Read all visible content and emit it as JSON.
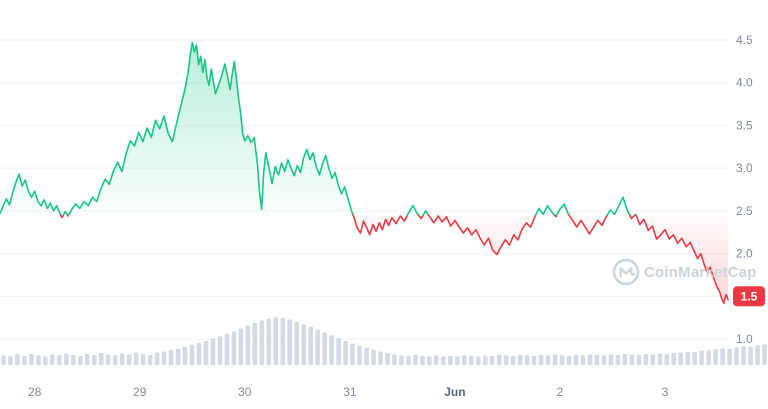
{
  "watermark": {
    "text": "CoinMarketCap",
    "icon": "coinmarketcap-logo",
    "color": "#ccd2da"
  },
  "chart_data": {
    "type": "line",
    "title": "",
    "xlabel": "",
    "ylabel": "",
    "x_unit": "day-of-period (May 28 = 28, Jun 1 = 32)",
    "x_domain": [
      27.67,
      34.98
    ],
    "ylim": [
      1.0,
      4.5
    ],
    "grid": true,
    "baseline": 2.45,
    "last_price_label": "1.5",
    "y_ticks": [
      1.0,
      1.5,
      2.0,
      2.5,
      3.0,
      3.5,
      4.0,
      4.5
    ],
    "x_ticks": [
      {
        "day": 28,
        "label": "28",
        "bold": false
      },
      {
        "day": 29,
        "label": "29",
        "bold": false
      },
      {
        "day": 30,
        "label": "30",
        "bold": false
      },
      {
        "day": 31,
        "label": "31",
        "bold": false
      },
      {
        "day": 32,
        "label": "Jun",
        "bold": true
      },
      {
        "day": 33,
        "label": "2",
        "bold": false
      },
      {
        "day": 34,
        "label": "3",
        "bold": false
      }
    ],
    "colors": {
      "up": "#16c784",
      "down": "#ea3943",
      "grid": "#eff2f5",
      "axis_text": "#808a9d",
      "axis_text_strong": "#58667e",
      "volume": "#d4dae3",
      "badge_text": "#ffffff"
    },
    "series": [
      {
        "name": "price",
        "points": [
          [
            27.67,
            2.47
          ],
          [
            27.7,
            2.56
          ],
          [
            27.73,
            2.64
          ],
          [
            27.76,
            2.57
          ],
          [
            27.79,
            2.71
          ],
          [
            27.82,
            2.83
          ],
          [
            27.85,
            2.93
          ],
          [
            27.88,
            2.79
          ],
          [
            27.91,
            2.86
          ],
          [
            27.94,
            2.73
          ],
          [
            27.97,
            2.66
          ],
          [
            28.0,
            2.73
          ],
          [
            28.03,
            2.61
          ],
          [
            28.06,
            2.56
          ],
          [
            28.09,
            2.63
          ],
          [
            28.12,
            2.53
          ],
          [
            28.15,
            2.59
          ],
          [
            28.18,
            2.5
          ],
          [
            28.21,
            2.56
          ],
          [
            28.24,
            2.47
          ],
          [
            28.26,
            2.42
          ],
          [
            28.29,
            2.49
          ],
          [
            28.32,
            2.44
          ],
          [
            28.35,
            2.51
          ],
          [
            28.39,
            2.58
          ],
          [
            28.43,
            2.53
          ],
          [
            28.47,
            2.61
          ],
          [
            28.51,
            2.56
          ],
          [
            28.55,
            2.66
          ],
          [
            28.59,
            2.61
          ],
          [
            28.63,
            2.76
          ],
          [
            28.67,
            2.87
          ],
          [
            28.71,
            2.81
          ],
          [
            28.75,
            2.97
          ],
          [
            28.79,
            3.07
          ],
          [
            28.83,
            2.96
          ],
          [
            28.87,
            3.17
          ],
          [
            28.91,
            3.32
          ],
          [
            28.95,
            3.26
          ],
          [
            28.99,
            3.42
          ],
          [
            29.03,
            3.31
          ],
          [
            29.07,
            3.47
          ],
          [
            29.11,
            3.36
          ],
          [
            29.15,
            3.56
          ],
          [
            29.19,
            3.46
          ],
          [
            29.23,
            3.61
          ],
          [
            29.27,
            3.41
          ],
          [
            29.31,
            3.31
          ],
          [
            29.35,
            3.52
          ],
          [
            29.39,
            3.72
          ],
          [
            29.43,
            3.92
          ],
          [
            29.46,
            4.12
          ],
          [
            29.48,
            4.32
          ],
          [
            29.5,
            4.47
          ],
          [
            29.52,
            4.36
          ],
          [
            29.54,
            4.44
          ],
          [
            29.56,
            4.21
          ],
          [
            29.58,
            4.31
          ],
          [
            29.6,
            4.12
          ],
          [
            29.62,
            4.27
          ],
          [
            29.64,
            4.06
          ],
          [
            29.66,
            3.97
          ],
          [
            29.68,
            4.16
          ],
          [
            29.7,
            4.02
          ],
          [
            29.72,
            3.87
          ],
          [
            29.75,
            3.97
          ],
          [
            29.78,
            4.08
          ],
          [
            29.81,
            4.22
          ],
          [
            29.84,
            4.05
          ],
          [
            29.86,
            3.92
          ],
          [
            29.88,
            4.1
          ],
          [
            29.9,
            4.25
          ],
          [
            29.92,
            4.05
          ],
          [
            29.94,
            3.82
          ],
          [
            29.96,
            3.65
          ],
          [
            29.98,
            3.4
          ],
          [
            30.0,
            3.32
          ],
          [
            30.03,
            3.38
          ],
          [
            30.06,
            3.3
          ],
          [
            30.09,
            3.36
          ],
          [
            30.12,
            3.05
          ],
          [
            30.14,
            2.72
          ],
          [
            30.16,
            2.52
          ],
          [
            30.18,
            2.95
          ],
          [
            30.2,
            3.18
          ],
          [
            30.23,
            3.0
          ],
          [
            30.26,
            2.82
          ],
          [
            30.29,
            3.02
          ],
          [
            30.32,
            2.92
          ],
          [
            30.35,
            3.06
          ],
          [
            30.38,
            2.96
          ],
          [
            30.41,
            3.1
          ],
          [
            30.44,
            3.0
          ],
          [
            30.47,
            2.91
          ],
          [
            30.5,
            3.03
          ],
          [
            30.53,
            2.95
          ],
          [
            30.56,
            3.12
          ],
          [
            30.59,
            3.22
          ],
          [
            30.62,
            3.1
          ],
          [
            30.65,
            3.18
          ],
          [
            30.68,
            3.02
          ],
          [
            30.71,
            2.92
          ],
          [
            30.74,
            3.05
          ],
          [
            30.77,
            3.15
          ],
          [
            30.8,
            3.0
          ],
          [
            30.83,
            2.88
          ],
          [
            30.86,
            2.95
          ],
          [
            30.89,
            2.8
          ],
          [
            30.92,
            2.7
          ],
          [
            30.95,
            2.78
          ],
          [
            30.98,
            2.65
          ],
          [
            31.01,
            2.52
          ],
          [
            31.04,
            2.42
          ],
          [
            31.07,
            2.3
          ],
          [
            31.1,
            2.24
          ],
          [
            31.13,
            2.38
          ],
          [
            31.16,
            2.3
          ],
          [
            31.19,
            2.22
          ],
          [
            31.22,
            2.34
          ],
          [
            31.25,
            2.26
          ],
          [
            31.28,
            2.36
          ],
          [
            31.31,
            2.28
          ],
          [
            31.34,
            2.4
          ],
          [
            31.37,
            2.33
          ],
          [
            31.4,
            2.42
          ],
          [
            31.44,
            2.35
          ],
          [
            31.48,
            2.44
          ],
          [
            31.52,
            2.38
          ],
          [
            31.56,
            2.48
          ],
          [
            31.6,
            2.56
          ],
          [
            31.64,
            2.47
          ],
          [
            31.68,
            2.41
          ],
          [
            31.72,
            2.5
          ],
          [
            31.76,
            2.43
          ],
          [
            31.8,
            2.36
          ],
          [
            31.84,
            2.44
          ],
          [
            31.88,
            2.37
          ],
          [
            31.92,
            2.43
          ],
          [
            31.96,
            2.32
          ],
          [
            32.0,
            2.39
          ],
          [
            32.04,
            2.31
          ],
          [
            32.08,
            2.24
          ],
          [
            32.12,
            2.3
          ],
          [
            32.16,
            2.22
          ],
          [
            32.2,
            2.28
          ],
          [
            32.24,
            2.18
          ],
          [
            32.28,
            2.1
          ],
          [
            32.32,
            2.18
          ],
          [
            32.36,
            2.04
          ],
          [
            32.4,
            1.99
          ],
          [
            32.44,
            2.08
          ],
          [
            32.48,
            2.16
          ],
          [
            32.52,
            2.1
          ],
          [
            32.56,
            2.22
          ],
          [
            32.6,
            2.16
          ],
          [
            32.64,
            2.29
          ],
          [
            32.68,
            2.36
          ],
          [
            32.72,
            2.31
          ],
          [
            32.76,
            2.43
          ],
          [
            32.8,
            2.53
          ],
          [
            32.84,
            2.46
          ],
          [
            32.88,
            2.56
          ],
          [
            32.92,
            2.49
          ],
          [
            32.96,
            2.43
          ],
          [
            33.0,
            2.52
          ],
          [
            33.04,
            2.58
          ],
          [
            33.08,
            2.46
          ],
          [
            33.12,
            2.39
          ],
          [
            33.16,
            2.31
          ],
          [
            33.2,
            2.39
          ],
          [
            33.24,
            2.31
          ],
          [
            33.28,
            2.23
          ],
          [
            33.32,
            2.31
          ],
          [
            33.36,
            2.39
          ],
          [
            33.4,
            2.33
          ],
          [
            33.44,
            2.43
          ],
          [
            33.48,
            2.51
          ],
          [
            33.52,
            2.46
          ],
          [
            33.56,
            2.56
          ],
          [
            33.6,
            2.66
          ],
          [
            33.64,
            2.51
          ],
          [
            33.68,
            2.41
          ],
          [
            33.72,
            2.46
          ],
          [
            33.76,
            2.34
          ],
          [
            33.8,
            2.4
          ],
          [
            33.84,
            2.27
          ],
          [
            33.88,
            2.32
          ],
          [
            33.92,
            2.17
          ],
          [
            33.96,
            2.22
          ],
          [
            34.0,
            2.28
          ],
          [
            34.04,
            2.17
          ],
          [
            34.08,
            2.22
          ],
          [
            34.12,
            2.12
          ],
          [
            34.16,
            2.18
          ],
          [
            34.2,
            2.08
          ],
          [
            34.24,
            2.13
          ],
          [
            34.28,
            2.02
          ],
          [
            34.31,
            1.94
          ],
          [
            34.34,
            2.0
          ],
          [
            34.37,
            1.88
          ],
          [
            34.4,
            1.78
          ],
          [
            34.43,
            1.84
          ],
          [
            34.46,
            1.72
          ],
          [
            34.49,
            1.62
          ],
          [
            34.52,
            1.55
          ],
          [
            34.54,
            1.47
          ],
          [
            34.56,
            1.42
          ],
          [
            34.58,
            1.52
          ],
          [
            34.6,
            1.46
          ]
        ]
      }
    ],
    "volume": [
      0.2,
      0.18,
      0.22,
      0.19,
      0.23,
      0.2,
      0.18,
      0.22,
      0.2,
      0.24,
      0.21,
      0.19,
      0.23,
      0.21,
      0.25,
      0.22,
      0.2,
      0.24,
      0.22,
      0.26,
      0.23,
      0.21,
      0.26,
      0.28,
      0.31,
      0.34,
      0.38,
      0.42,
      0.46,
      0.5,
      0.55,
      0.6,
      0.65,
      0.7,
      0.76,
      0.82,
      0.88,
      0.93,
      0.97,
      1.0,
      0.98,
      0.95,
      0.9,
      0.85,
      0.8,
      0.74,
      0.68,
      0.62,
      0.56,
      0.5,
      0.45,
      0.4,
      0.36,
      0.32,
      0.28,
      0.25,
      0.22,
      0.2,
      0.19,
      0.21,
      0.19,
      0.18,
      0.2,
      0.18,
      0.19,
      0.18,
      0.2,
      0.19,
      0.18,
      0.2,
      0.19,
      0.21,
      0.2,
      0.19,
      0.21,
      0.2,
      0.19,
      0.21,
      0.2,
      0.22,
      0.2,
      0.19,
      0.21,
      0.2,
      0.22,
      0.21,
      0.2,
      0.22,
      0.21,
      0.23,
      0.22,
      0.21,
      0.23,
      0.22,
      0.24,
      0.23,
      0.25,
      0.26,
      0.28,
      0.27,
      0.3,
      0.31,
      0.33,
      0.35,
      0.34,
      0.37,
      0.39,
      0.38,
      0.41,
      0.43
    ]
  }
}
